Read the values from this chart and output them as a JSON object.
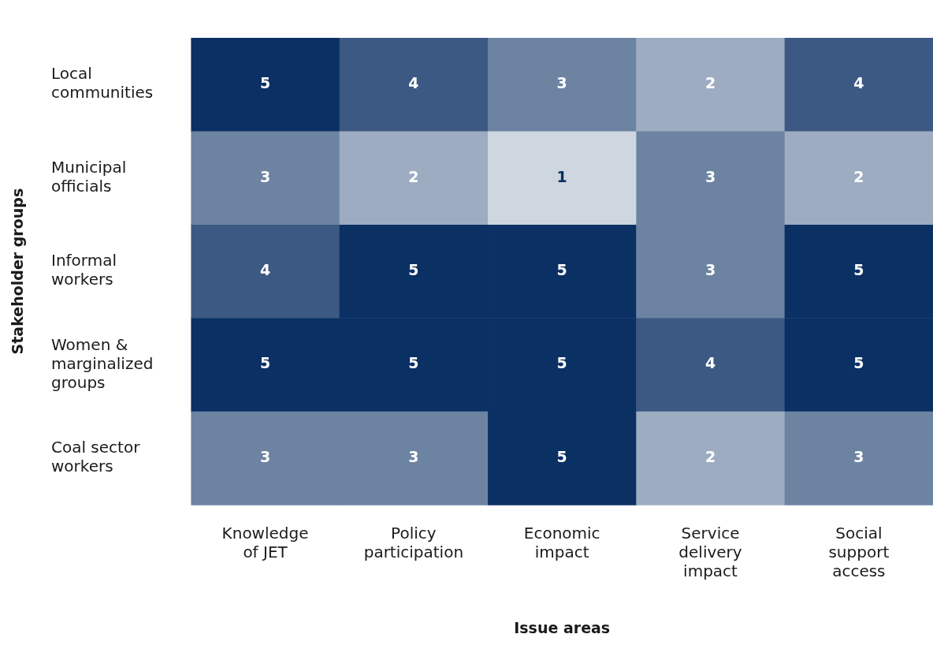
{
  "chart_data": {
    "type": "heatmap",
    "xlabel": "Issue areas",
    "ylabel": "Stakeholder groups",
    "categories": [
      "Knowledge of JET",
      "Policy participation",
      "Economic impact",
      "Service delivery impact",
      "Social support access"
    ],
    "y_categories": [
      "Local communities",
      "Municipal officials",
      "Informal workers",
      "Women & marginalized groups",
      "Coal sector workers"
    ],
    "cells": [
      [
        5,
        4,
        3,
        2,
        4
      ],
      [
        3,
        2,
        1,
        3,
        2
      ],
      [
        4,
        5,
        5,
        3,
        5
      ],
      [
        5,
        5,
        5,
        4,
        5
      ],
      [
        3,
        3,
        5,
        2,
        3
      ]
    ],
    "color": "#0b3064",
    "data_labels": true
  }
}
